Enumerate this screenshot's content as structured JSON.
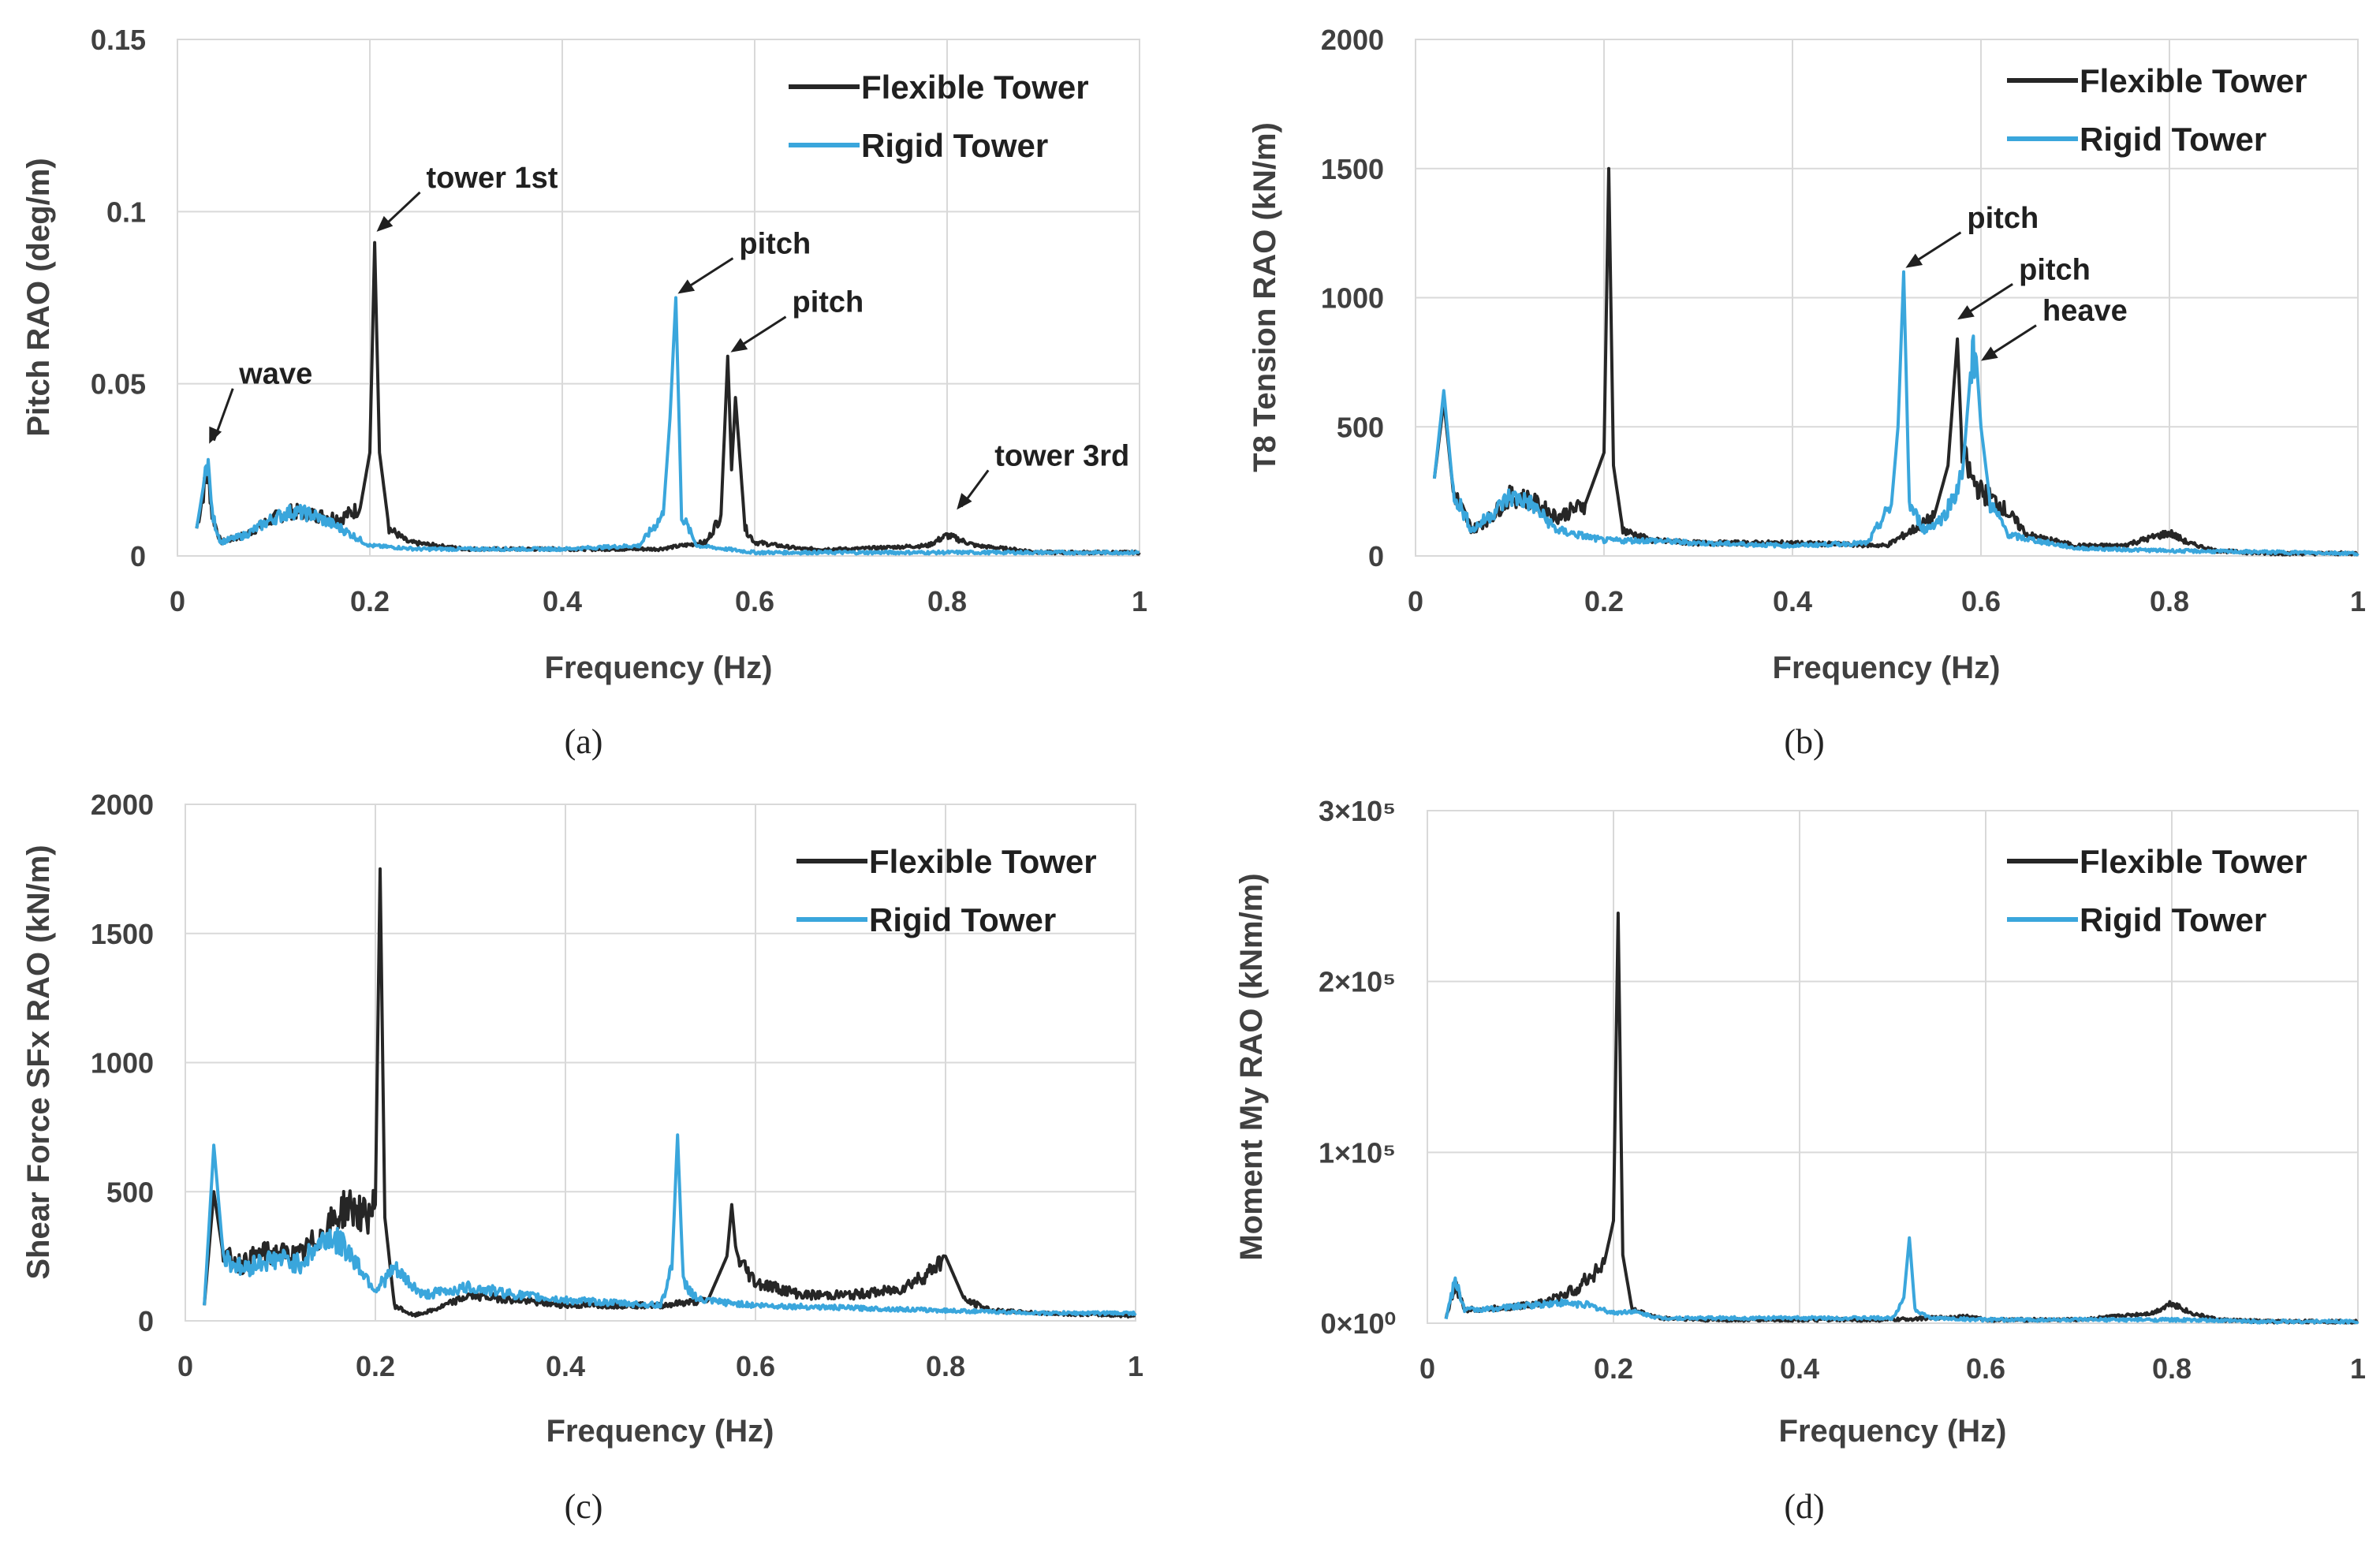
{
  "colors": {
    "flexible": "#262626",
    "rigid": "#3aa6dc",
    "grid": "#d9d9d9",
    "text": "#404040"
  },
  "chart_data": [
    {
      "id": "a",
      "type": "line",
      "caption": "(a)",
      "xlabel": "Frequency (Hz)",
      "ylabel": "Pitch RAO (deg/m)",
      "xlim": [
        0,
        1
      ],
      "ylim": [
        0,
        0.15
      ],
      "xticks": [
        0,
        0.2,
        0.4,
        0.6,
        0.8,
        1
      ],
      "xtick_labels": [
        "0",
        "0.2",
        "0.4",
        "0.6",
        "0.8",
        "1"
      ],
      "yticks": [
        0,
        0.05,
        0.1,
        0.15
      ],
      "ytick_labels": [
        "0",
        "0.05",
        "0.1",
        "0.15"
      ],
      "legend": [
        "Flexible Tower",
        "Rigid Tower"
      ],
      "legend_position": "top-right",
      "series": [
        {
          "name": "Flexible Tower",
          "x": [
            0.02,
            0.028,
            0.032,
            0.036,
            0.045,
            0.07,
            0.1,
            0.12,
            0.14,
            0.17,
            0.19,
            0.2,
            0.205,
            0.21,
            0.22,
            0.24,
            0.3,
            0.4,
            0.5,
            0.55,
            0.565,
            0.572,
            0.576,
            0.58,
            0.59,
            0.6,
            0.65,
            0.7,
            0.78,
            0.8,
            0.83,
            0.9,
            1.0
          ],
          "y": [
            0.008,
            0.02,
            0.024,
            0.012,
            0.004,
            0.006,
            0.011,
            0.013,
            0.012,
            0.011,
            0.014,
            0.03,
            0.091,
            0.03,
            0.008,
            0.004,
            0.002,
            0.002,
            0.002,
            0.004,
            0.012,
            0.058,
            0.025,
            0.046,
            0.008,
            0.004,
            0.002,
            0.002,
            0.003,
            0.006,
            0.003,
            0.001,
            0.001
          ]
        },
        {
          "name": "Rigid Tower",
          "x": [
            0.02,
            0.028,
            0.032,
            0.036,
            0.045,
            0.07,
            0.1,
            0.12,
            0.14,
            0.17,
            0.2,
            0.25,
            0.3,
            0.4,
            0.48,
            0.505,
            0.512,
            0.518,
            0.524,
            0.54,
            0.6,
            0.7,
            0.8,
            0.9,
            1.0
          ],
          "y": [
            0.008,
            0.022,
            0.028,
            0.012,
            0.004,
            0.006,
            0.011,
            0.013,
            0.012,
            0.008,
            0.003,
            0.002,
            0.002,
            0.002,
            0.003,
            0.012,
            0.04,
            0.075,
            0.012,
            0.003,
            0.001,
            0.001,
            0.001,
            0.001,
            0.001
          ]
        }
      ],
      "annotations": [
        {
          "text": "wave",
          "x": 0.033,
          "y": 0.028
        },
        {
          "text": "tower 1st",
          "x": 0.207,
          "y": 0.093
        },
        {
          "text": "pitch",
          "x": 0.52,
          "y": 0.075
        },
        {
          "text": "pitch",
          "x": 0.575,
          "y": 0.058
        },
        {
          "text": "tower 3rd",
          "x": 0.81,
          "y": 0.01
        }
      ]
    },
    {
      "id": "b",
      "type": "line",
      "caption": "(b)",
      "xlabel": "Frequency (Hz)",
      "ylabel": "T8 Tension RAO (kN/m)",
      "xlim": [
        0,
        1
      ],
      "ylim": [
        0,
        2000
      ],
      "xticks": [
        0,
        0.2,
        0.4,
        0.6,
        0.8,
        1
      ],
      "xtick_labels": [
        "0",
        "0.2",
        "0.4",
        "0.6",
        "0.8",
        "1"
      ],
      "yticks": [
        0,
        500,
        1000,
        1500,
        2000
      ],
      "ytick_labels": [
        "0",
        "500",
        "1000",
        "1500",
        "2000"
      ],
      "legend": [
        "Flexible Tower",
        "Rigid Tower"
      ],
      "legend_position": "top-right",
      "series": [
        {
          "name": "Flexible Tower",
          "x": [
            0.02,
            0.03,
            0.04,
            0.06,
            0.08,
            0.1,
            0.12,
            0.15,
            0.18,
            0.2,
            0.205,
            0.21,
            0.22,
            0.25,
            0.3,
            0.4,
            0.5,
            0.55,
            0.565,
            0.575,
            0.58,
            0.59,
            0.6,
            0.62,
            0.65,
            0.7,
            0.75,
            0.8,
            0.82,
            0.85,
            0.9,
            1.0
          ],
          "y": [
            300,
            600,
            250,
            100,
            150,
            230,
            220,
            150,
            200,
            400,
            1500,
            350,
            100,
            60,
            50,
            50,
            40,
            150,
            350,
            840,
            400,
            300,
            250,
            200,
            80,
            40,
            40,
            90,
            50,
            20,
            10,
            10
          ]
        },
        {
          "name": "Rigid Tower",
          "x": [
            0.02,
            0.03,
            0.04,
            0.06,
            0.08,
            0.1,
            0.12,
            0.15,
            0.2,
            0.25,
            0.3,
            0.4,
            0.48,
            0.505,
            0.512,
            0.518,
            0.524,
            0.54,
            0.56,
            0.58,
            0.59,
            0.595,
            0.6,
            0.61,
            0.63,
            0.7,
            0.8,
            1.0
          ],
          "y": [
            300,
            640,
            250,
            100,
            160,
            230,
            210,
            100,
            60,
            60,
            50,
            40,
            50,
            200,
            500,
            1100,
            200,
            100,
            150,
            300,
            760,
            770,
            500,
            200,
            80,
            30,
            20,
            10
          ]
        }
      ],
      "annotations": [
        {
          "text": "pitch",
          "x": 0.52,
          "y": 1100
        },
        {
          "text": "pitch",
          "x": 0.575,
          "y": 900
        },
        {
          "text": "heave",
          "x": 0.6,
          "y": 740
        }
      ]
    },
    {
      "id": "c",
      "type": "line",
      "caption": "(c)",
      "xlabel": "Frequency (Hz)",
      "ylabel": "Shear Force SFx RAO (kN/m)",
      "xlim": [
        0,
        1
      ],
      "ylim": [
        0,
        2000
      ],
      "xticks": [
        0,
        0.2,
        0.4,
        0.6,
        0.8,
        1
      ],
      "xtick_labels": [
        "0",
        "0.2",
        "0.4",
        "0.6",
        "0.8",
        "1"
      ],
      "yticks": [
        0,
        500,
        1000,
        1500,
        2000
      ],
      "ytick_labels": [
        "0",
        "500",
        "1000",
        "1500",
        "2000"
      ],
      "legend": [
        "Flexible Tower",
        "Rigid Tower"
      ],
      "legend_position": "top-right",
      "series": [
        {
          "name": "Flexible Tower",
          "x": [
            0.02,
            0.03,
            0.04,
            0.06,
            0.08,
            0.1,
            0.12,
            0.15,
            0.17,
            0.19,
            0.2,
            0.205,
            0.21,
            0.22,
            0.24,
            0.26,
            0.3,
            0.4,
            0.5,
            0.55,
            0.57,
            0.575,
            0.58,
            0.6,
            0.65,
            0.7,
            0.75,
            0.78,
            0.8,
            0.82,
            0.85,
            0.9,
            1.0
          ],
          "y": [
            60,
            500,
            250,
            220,
            260,
            260,
            250,
            360,
            450,
            400,
            450,
            1750,
            400,
            60,
            20,
            40,
            100,
            60,
            60,
            80,
            250,
            450,
            250,
            150,
            100,
            100,
            120,
            180,
            250,
            80,
            40,
            30,
            20
          ]
        },
        {
          "name": "Rigid Tower",
          "x": [
            0.02,
            0.03,
            0.04,
            0.06,
            0.08,
            0.1,
            0.12,
            0.15,
            0.17,
            0.2,
            0.22,
            0.25,
            0.3,
            0.35,
            0.4,
            0.45,
            0.5,
            0.512,
            0.518,
            0.524,
            0.54,
            0.6,
            0.7,
            0.8,
            0.9,
            1.0
          ],
          "y": [
            60,
            680,
            250,
            200,
            230,
            240,
            220,
            330,
            280,
            120,
            200,
            100,
            130,
            100,
            80,
            70,
            60,
            200,
            720,
            150,
            80,
            60,
            50,
            40,
            30,
            30
          ]
        }
      ],
      "annotations": []
    },
    {
      "id": "d",
      "type": "line",
      "caption": "(d)",
      "xlabel": "Frequency (Hz)",
      "ylabel": "Moment My  RAO (kNm/m)",
      "xlim": [
        0,
        1
      ],
      "ylim": [
        0,
        300000
      ],
      "xticks": [
        0,
        0.2,
        0.4,
        0.6,
        0.8,
        1
      ],
      "xtick_labels": [
        "0",
        "0.2",
        "0.4",
        "0.6",
        "0.8",
        "1"
      ],
      "yticks": [
        0,
        100000,
        200000,
        300000
      ],
      "ytick_labels": [
        "0×10⁰",
        "1×10⁵",
        "2×10⁵",
        "3×10⁵"
      ],
      "legend": [
        "Flexible Tower",
        "Rigid Tower"
      ],
      "legend_position": "top-right",
      "series": [
        {
          "name": "Flexible Tower",
          "x": [
            0.02,
            0.03,
            0.04,
            0.06,
            0.1,
            0.13,
            0.16,
            0.19,
            0.2,
            0.205,
            0.21,
            0.22,
            0.25,
            0.3,
            0.4,
            0.5,
            0.58,
            0.6,
            0.7,
            0.78,
            0.8,
            0.82,
            0.85,
            0.9,
            1.0
          ],
          "y": [
            3000,
            22000,
            8000,
            8000,
            10000,
            13000,
            20000,
            35000,
            60000,
            240000,
            40000,
            8000,
            3000,
            2000,
            2000,
            2000,
            4000,
            2000,
            2000,
            6000,
            12000,
            6000,
            2000,
            1000,
            1000
          ]
        },
        {
          "name": "Rigid Tower",
          "x": [
            0.02,
            0.03,
            0.04,
            0.06,
            0.1,
            0.14,
            0.17,
            0.2,
            0.22,
            0.25,
            0.3,
            0.4,
            0.5,
            0.512,
            0.518,
            0.524,
            0.54,
            0.6,
            0.7,
            0.8,
            0.9,
            1.0
          ],
          "y": [
            3000,
            25000,
            8000,
            8000,
            10000,
            12000,
            11000,
            6000,
            7000,
            3000,
            3000,
            3000,
            3000,
            15000,
            50000,
            8000,
            3000,
            2000,
            2000,
            2000,
            1000,
            1000
          ]
        }
      ],
      "annotations": []
    }
  ]
}
